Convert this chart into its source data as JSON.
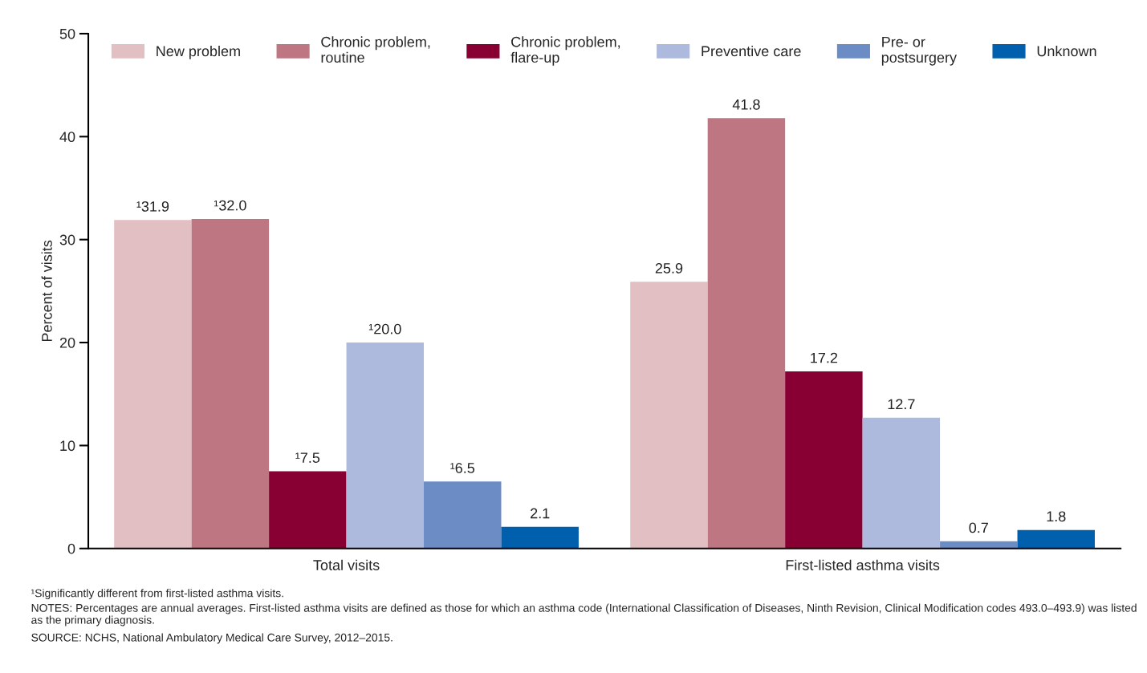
{
  "chart_data": {
    "type": "bar",
    "ylabel": "Percent of visits",
    "categories": [
      "Total visits",
      "First-listed asthma visits"
    ],
    "series": [
      {
        "name": "New problem",
        "color": "#e2bfc3",
        "values": [
          31.9,
          25.9
        ],
        "value_labels": [
          "¹31.9",
          "25.9"
        ]
      },
      {
        "name": "Chronic problem,\nroutine",
        "color": "#bf7683",
        "values": [
          32.0,
          41.8
        ],
        "value_labels": [
          "¹32.0",
          "41.8"
        ]
      },
      {
        "name": "Chronic problem,\nflare-up",
        "color": "#880033",
        "values": [
          7.5,
          17.2
        ],
        "value_labels": [
          "¹7.5",
          "17.2"
        ]
      },
      {
        "name": "Preventive care",
        "color": "#adbade",
        "values": [
          20.0,
          12.7
        ],
        "value_labels": [
          "¹20.0",
          "12.7"
        ]
      },
      {
        "name": "Pre- or\npostsurgery",
        "color": "#6c8cc6",
        "values": [
          6.5,
          0.7
        ],
        "value_labels": [
          "¹6.5",
          "0.7"
        ]
      },
      {
        "name": "Unknown",
        "color": "#0060ad",
        "values": [
          2.1,
          1.8
        ],
        "value_labels": [
          "2.1",
          "1.8"
        ]
      }
    ],
    "ylim": [
      0,
      50
    ],
    "yticks": [
      0,
      10,
      20,
      30,
      40,
      50
    ],
    "grid": false,
    "legend": "top",
    "annotations": [
      "¹Significantly different from first-listed asthma visits.",
      "NOTES: Percentages are annual averages. First-listed asthma visits are defined as those for which an asthma code (International Classification of Diseases, Ninth Revision, Clinical Modification codes 493.0–493.9) was listed as the primary diagnosis.",
      "SOURCE: NCHS, National Ambulatory Medical Care Survey, 2012–2015."
    ]
  }
}
